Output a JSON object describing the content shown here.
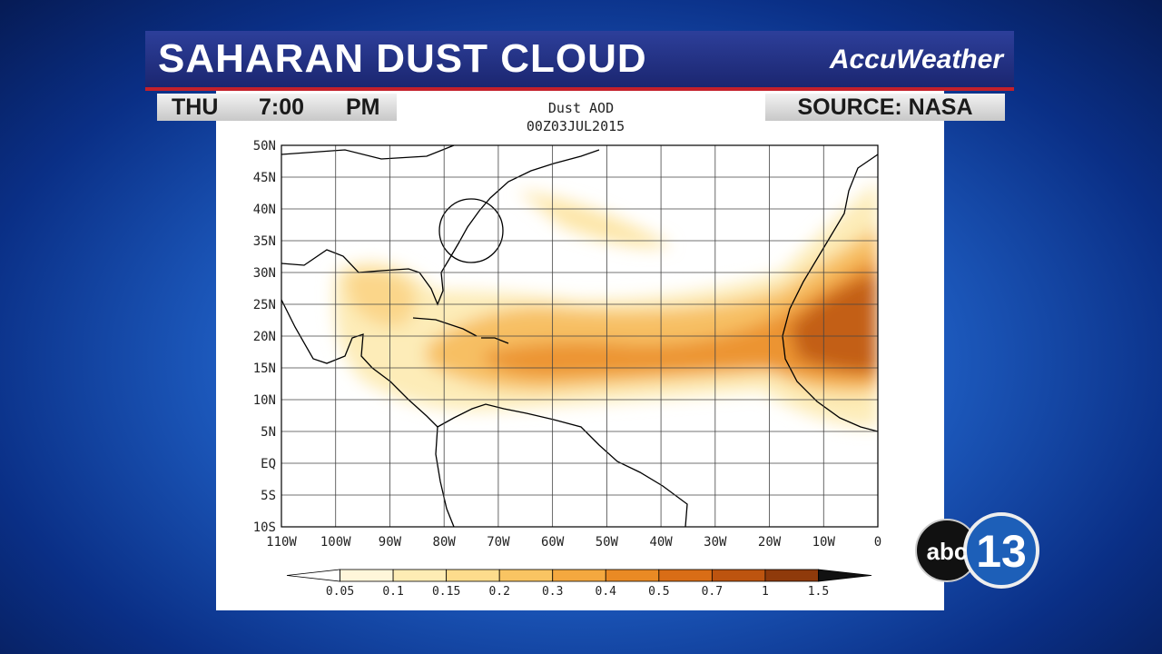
{
  "banner": {
    "title": "SAHARAN DUST CLOUD",
    "brand": "AccuWeather"
  },
  "info": {
    "day": "THU",
    "time": "7:00",
    "meridiem": "PM",
    "source": "SOURCE: NASA"
  },
  "map": {
    "title": "Dust AOD",
    "timestamp": "00Z03JUL2015",
    "lat_labels": [
      "50N",
      "45N",
      "40N",
      "35N",
      "30N",
      "25N",
      "20N",
      "15N",
      "10N",
      "5N",
      "EQ",
      "5S",
      "10S"
    ],
    "lon_labels": [
      "110W",
      "100W",
      "90W",
      "80W",
      "70W",
      "60W",
      "50W",
      "40W",
      "30W",
      "20W",
      "10W",
      "0"
    ]
  },
  "colorbar": {
    "labels": [
      "0.05",
      "0.1",
      "0.15",
      "0.2",
      "0.3",
      "0.4",
      "0.5",
      "0.7",
      "1",
      "1.5"
    ],
    "colors": [
      "#ffffff",
      "#fff6da",
      "#feecb4",
      "#fddc8c",
      "#f9c462",
      "#f4a83f",
      "#ea8a24",
      "#d96d16",
      "#bd540f",
      "#8f3a0b",
      "#111111"
    ]
  },
  "logo": {
    "network": "abc",
    "channel": "13"
  }
}
